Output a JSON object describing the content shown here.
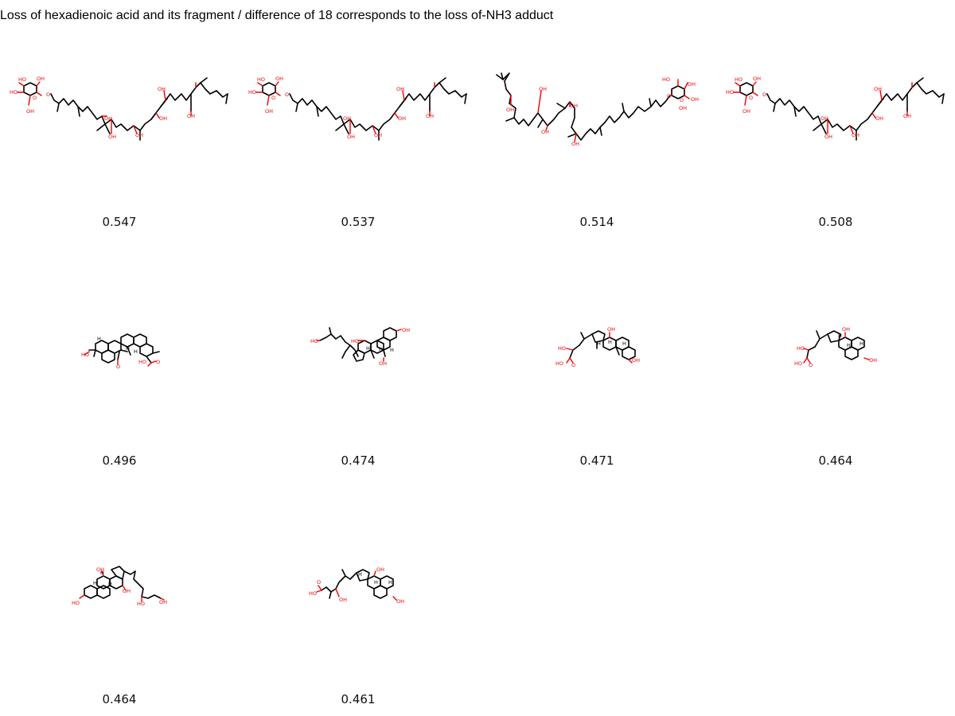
{
  "title": "Loss of hexadienoic acid and its fragment / difference of 18 corresponds to the loss of-NH3 adduct",
  "molecules": [
    {
      "score": "0.547",
      "kind": "glycolipid-a",
      "atom_labels": [
        "HO",
        "OH",
        "HO",
        "O",
        "O",
        "OH",
        "OH",
        "OH",
        "OH",
        "OH",
        "OH",
        "OH"
      ]
    },
    {
      "score": "0.537",
      "kind": "glycolipid-a",
      "atom_labels": [
        "HO",
        "OH",
        "HO",
        "O",
        "O",
        "OH",
        "OH",
        "OH",
        "OH",
        "OH",
        "OH",
        "OH"
      ]
    },
    {
      "score": "0.514",
      "kind": "glycolipid-b",
      "atom_labels": [
        "OH",
        "OH",
        "OH",
        "OH",
        "OH",
        "HO",
        "OH",
        "OH",
        "O",
        "O",
        "OH"
      ]
    },
    {
      "score": "0.508",
      "kind": "glycolipid-a",
      "atom_labels": [
        "HO",
        "OH",
        "HO",
        "O",
        "O",
        "OH",
        "OH",
        "OH",
        "OH",
        "OH",
        "OH",
        "OH"
      ]
    },
    {
      "score": "0.496",
      "kind": "triterpene",
      "atom_labels": [
        "HO",
        "H",
        "H",
        "O",
        "H",
        "HO",
        "O"
      ]
    },
    {
      "score": "0.474",
      "kind": "steroid-side-chain",
      "atom_labels": [
        "HO",
        "HO",
        "H",
        "H",
        "OH",
        "H",
        "OH"
      ]
    },
    {
      "score": "0.471",
      "kind": "bile-acid",
      "atom_labels": [
        "HO",
        "HO",
        "O",
        "OH",
        "H",
        "H",
        "H",
        "OH"
      ]
    },
    {
      "score": "0.464",
      "kind": "bile-acid",
      "atom_labels": [
        "HO",
        "HO",
        "O",
        "OH",
        "H",
        "H",
        "H",
        "OH"
      ]
    },
    {
      "score": "0.464",
      "kind": "steroid-diol",
      "atom_labels": [
        "OH",
        "H",
        "H",
        "H",
        "HO",
        "OH",
        "HO",
        "OH"
      ]
    },
    {
      "score": "0.461",
      "kind": "bile-acid-b",
      "atom_labels": [
        "O",
        "HO",
        "OH",
        "H",
        "OH",
        "H",
        "H",
        "OH"
      ]
    }
  ]
}
